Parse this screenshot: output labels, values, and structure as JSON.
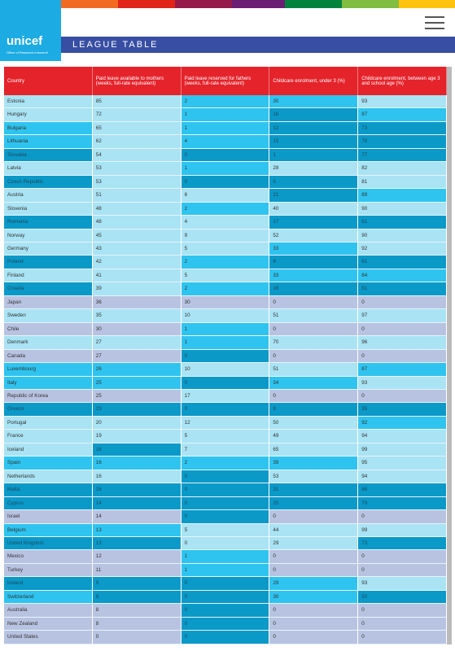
{
  "header": {
    "logo": "unicef",
    "logo_sub": "Office of Research-Innocenti",
    "title": "LEAGUE TABLE"
  },
  "table": {
    "columns": [
      "Country",
      "Paid leave available to mothers (weeks, full-rate equivalent)",
      "Paid leave reserved for fathers (weeks, full-rate equivalent)",
      "Childcare enrolment, under 3 (%)",
      "Childcare enrolment, between age 3 and school age (%)"
    ],
    "rows": [
      [
        "Estonia",
        85,
        2,
        30,
        93
      ],
      [
        "Hungary",
        72,
        1,
        16,
        87
      ],
      [
        "Bulgaria",
        65,
        1,
        12,
        73
      ],
      [
        "Lithuania",
        62,
        4,
        15,
        78
      ],
      [
        "Slovakia",
        54,
        0,
        1,
        77
      ],
      [
        "Latvia",
        53,
        1,
        28,
        82
      ],
      [
        "Czech Republic",
        53,
        0,
        5,
        81
      ],
      [
        "Austria",
        51,
        6,
        21,
        89
      ],
      [
        "Slovenia",
        48,
        2,
        40,
        90
      ],
      [
        "Romania",
        48,
        4,
        17,
        61
      ],
      [
        "Norway",
        45,
        9,
        52,
        90
      ],
      [
        "Germany",
        43,
        5,
        33,
        92
      ],
      [
        "Poland",
        42,
        2,
        8,
        61
      ],
      [
        "Finland",
        41,
        5,
        33,
        84
      ],
      [
        "Croatia",
        39,
        2,
        16,
        51
      ],
      [
        "Japan",
        36,
        30,
        0,
        0
      ],
      [
        "Sweden",
        35,
        10,
        51,
        97
      ],
      [
        "Chile",
        30,
        1,
        0,
        0
      ],
      [
        "Denmark",
        27,
        1,
        70,
        96
      ],
      [
        "Canada",
        27,
        0,
        0,
        0
      ],
      [
        "Luxembourg",
        26,
        10,
        51,
        87
      ],
      [
        "Italy",
        25,
        0,
        34,
        93
      ],
      [
        "Republic of Korea",
        25,
        17,
        0,
        0
      ],
      [
        "Greece",
        23,
        0,
        9,
        35
      ],
      [
        "Portugal",
        20,
        12,
        50,
        92
      ],
      [
        "France",
        19,
        5,
        49,
        94
      ],
      [
        "Iceland",
        16,
        7,
        65,
        99
      ],
      [
        "Spain",
        16,
        2,
        39,
        95
      ],
      [
        "Netherlands",
        16,
        0,
        53,
        94
      ],
      [
        "Malta",
        16,
        0,
        31,
        88
      ],
      [
        "Cyprus",
        14,
        0,
        25,
        79
      ],
      [
        "Israel",
        14,
        0,
        0,
        0
      ],
      [
        "Belgium",
        13,
        5,
        44,
        99
      ],
      [
        "United Kingdom",
        13,
        0,
        29,
        73
      ],
      [
        "Mexico",
        12,
        1,
        0,
        0
      ],
      [
        "Turkey",
        11,
        1,
        0,
        0
      ],
      [
        "Ireland",
        9,
        0,
        29,
        93
      ],
      [
        "Switzerland",
        8,
        0,
        30,
        50
      ],
      [
        "Australia",
        8,
        0,
        0,
        0
      ],
      [
        "New Zealand",
        8,
        0,
        0,
        0
      ],
      [
        "United States",
        0,
        0,
        0,
        0
      ]
    ],
    "shades": [
      "LLMML",
      "LLMDM",
      "MLMDD",
      "MLMDD",
      "DLDDD",
      "LLMLL",
      "DLDDL",
      "LLLDM",
      "LLMLL",
      "DLLDD",
      "LLLLL",
      "LLLML",
      "DLMDD",
      "LLLMM",
      "DLMDD",
      "GGGGG",
      "LLLLL",
      "GGMGG",
      "LLMLL",
      "GGDGG",
      "MMLLM",
      "MMDML",
      "GGLGG",
      "DDDDD",
      "LLLLM",
      "LLLLL",
      "LDLLL",
      "MMMML",
      "LLDLL",
      "DDDDD",
      "DDDDD",
      "GGDGG",
      "MMLLL",
      "DDLLD",
      "GGMGG",
      "GGMGG",
      "DDDML",
      "MDDMD",
      "GGDGG",
      "GGDGG",
      "GGDGG"
    ],
    "palette": {
      "L": "#a9e3f4",
      "M": "#2fc4ef",
      "D": "#0b99c8",
      "G": "#b8c3e1"
    }
  }
}
